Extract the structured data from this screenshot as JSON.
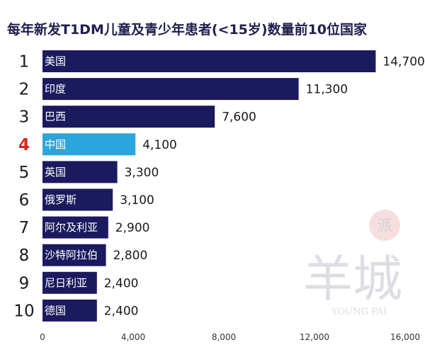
{
  "chart_data": {
    "type": "bar",
    "orientation": "horizontal",
    "title": "每年新发T1DM儿童及青少年患者(<15岁)数量前10位国家",
    "ranks": [
      "1",
      "2",
      "3",
      "4",
      "5",
      "6",
      "7",
      "8",
      "9",
      "10"
    ],
    "categories": [
      "美国",
      "印度",
      "巴西",
      "中国",
      "英国",
      "俄罗斯",
      "阿尔及利亚",
      "沙特阿拉伯",
      "尼日利亚",
      "德国"
    ],
    "values": [
      14700,
      11300,
      7600,
      4100,
      3300,
      3100,
      2900,
      2800,
      2400,
      2400
    ],
    "value_labels": [
      "14,700",
      "11,300",
      "7,600",
      "4,100",
      "3,300",
      "3,100",
      "2,900",
      "2,800",
      "2,400",
      "2,400"
    ],
    "highlight_index": 3,
    "xlim": [
      0,
      16000
    ],
    "x_ticks": [
      0,
      4000,
      8000,
      12000,
      16000
    ],
    "x_tick_labels": [
      "0",
      "4,000",
      "8,000",
      "12,000",
      "16,000"
    ],
    "xlabel": "",
    "ylabel": "",
    "grid": false
  },
  "colors": {
    "bar": "#1b1a5e",
    "highlight": "#2aa6dc",
    "title": "#1f1f4d",
    "highlight_rank": "#d9251c"
  },
  "watermark": {
    "seal_char": "派",
    "text_cn": "羊城",
    "text_en": "YOUNG PAI"
  }
}
